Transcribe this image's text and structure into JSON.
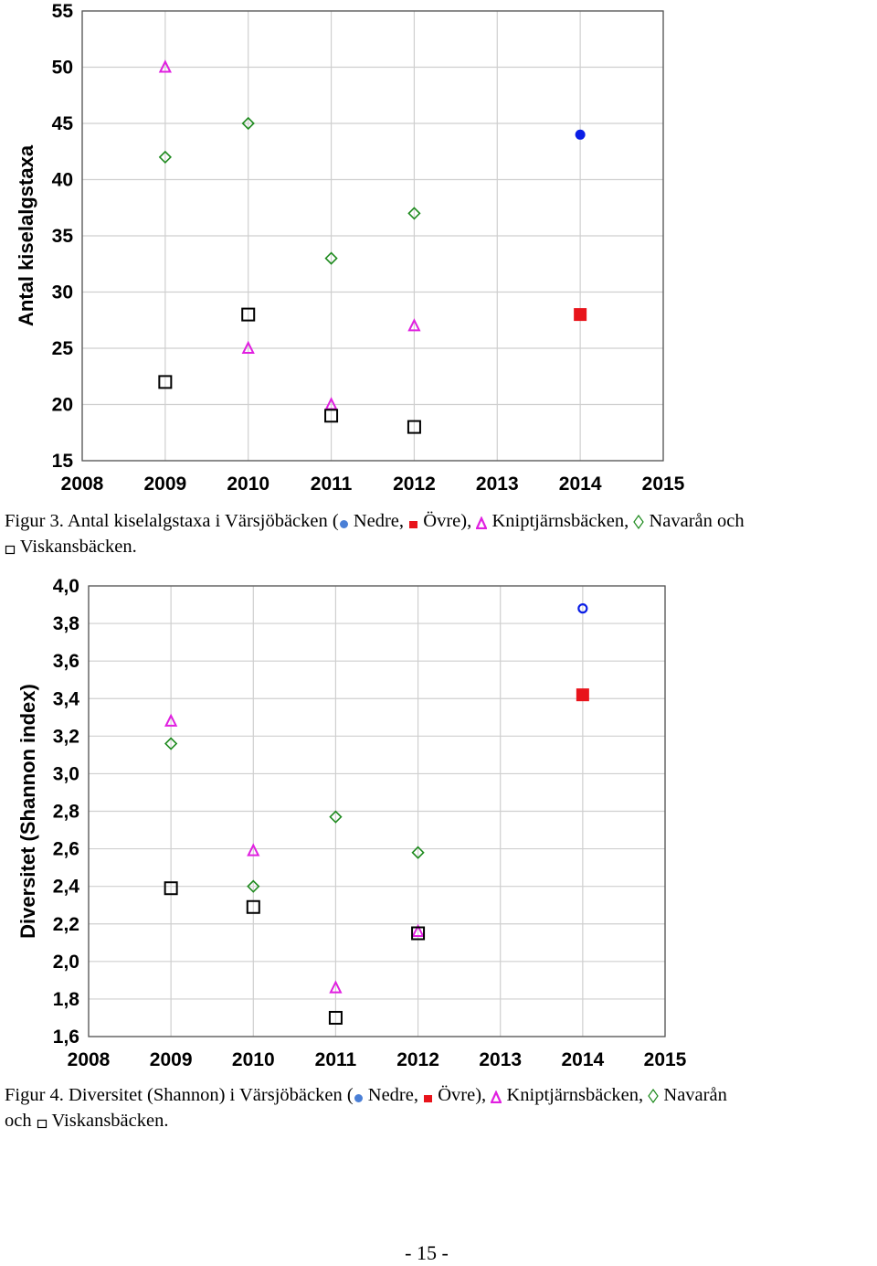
{
  "legend_symbols": {
    "nedre": {
      "icon": "filled-circle-icon",
      "color": "#4a7fd6"
    },
    "ovre": {
      "icon": "filled-square-icon",
      "color": "#e8141b"
    },
    "kniptjarn": {
      "icon": "delta-icon",
      "color": "#e020e0"
    },
    "navaran": {
      "icon": "diamond-outline-icon",
      "color": "#1d8a1d"
    },
    "viskans": {
      "icon": "square-outline-icon",
      "color": "#000000"
    }
  },
  "figure3": {
    "caption": {
      "prefix": "Figur 3. Antal kiselalgstaxa i Värsjöbäcken (",
      "nedre": " Nedre, ",
      "ovre": " Övre), ",
      "kniptjarn": " Kniptjärnsbäcken, ",
      "navaran": " Navarån och",
      "viskans": " Viskansbäcken."
    }
  },
  "figure4": {
    "caption": {
      "prefix": "Figur 4. Diversitet (Shannon) i Värsjöbäcken (",
      "nedre": " Nedre, ",
      "ovre": " Övre), ",
      "kniptjarn": " Kniptjärnsbäcken, ",
      "navaran": " Navarån",
      "och": "och ",
      "viskans": " Viskansbäcken."
    }
  },
  "page_number": "- 15 -",
  "chart_data": [
    {
      "type": "scatter",
      "title": "",
      "xlabel": "",
      "ylabel": "Antal kiselalgstaxa",
      "xlim": [
        2008,
        2015
      ],
      "ylim": [
        15,
        55
      ],
      "grid": true,
      "xticks": [
        "2008",
        "2009",
        "2010",
        "2011",
        "2012",
        "2013",
        "2014",
        "2015"
      ],
      "yticks": [
        "15",
        "20",
        "25",
        "30",
        "35",
        "40",
        "45",
        "50",
        "55"
      ],
      "series": [
        {
          "key": "nedre",
          "marker": "filled-circle",
          "color": "#0a1ee6",
          "points": [
            [
              2014,
              44
            ]
          ]
        },
        {
          "key": "ovre",
          "marker": "filled-square",
          "color": "#e8141b",
          "points": [
            [
              2014,
              28
            ]
          ]
        },
        {
          "key": "kniptjarn",
          "marker": "triangle",
          "color": "#e020e0",
          "points": [
            [
              2009,
              50
            ],
            [
              2010,
              25
            ],
            [
              2011,
              20
            ],
            [
              2012,
              27
            ]
          ]
        },
        {
          "key": "navaran",
          "marker": "diamond",
          "color": "#1d8a1d",
          "points": [
            [
              2009,
              42
            ],
            [
              2010,
              45
            ],
            [
              2011,
              33
            ],
            [
              2012,
              37
            ]
          ]
        },
        {
          "key": "viskans",
          "marker": "square",
          "color": "#000000",
          "points": [
            [
              2009,
              22
            ],
            [
              2010,
              28
            ],
            [
              2011,
              19
            ],
            [
              2012,
              18
            ]
          ]
        }
      ]
    },
    {
      "type": "scatter",
      "title": "",
      "xlabel": "",
      "ylabel": "Diversitet (Shannon index)",
      "xlim": [
        2008,
        2015
      ],
      "ylim": [
        1.6,
        4.0
      ],
      "grid": true,
      "xticks": [
        "2008",
        "2009",
        "2010",
        "2011",
        "2012",
        "2013",
        "2014",
        "2015"
      ],
      "yticks": [
        "1,6",
        "1,8",
        "2,0",
        "2,2",
        "2,4",
        "2,6",
        "2,8",
        "3,0",
        "3,2",
        "3,4",
        "3,6",
        "3,8",
        "4,0"
      ],
      "series": [
        {
          "key": "nedre",
          "marker": "circle",
          "color": "#0a1ee6",
          "points": [
            [
              2014,
              3.88
            ]
          ]
        },
        {
          "key": "ovre",
          "marker": "filled-square",
          "color": "#e8141b",
          "points": [
            [
              2014,
              3.42
            ]
          ]
        },
        {
          "key": "kniptjarn",
          "marker": "triangle",
          "color": "#e020e0",
          "points": [
            [
              2009,
              3.28
            ],
            [
              2010,
              2.59
            ],
            [
              2011,
              1.86
            ],
            [
              2012,
              2.16
            ]
          ]
        },
        {
          "key": "navaran",
          "marker": "diamond",
          "color": "#1d8a1d",
          "points": [
            [
              2009,
              3.16
            ],
            [
              2010,
              2.4
            ],
            [
              2011,
              2.77
            ],
            [
              2012,
              2.58
            ]
          ]
        },
        {
          "key": "viskans",
          "marker": "square",
          "color": "#000000",
          "points": [
            [
              2009,
              2.39
            ],
            [
              2010,
              2.29
            ],
            [
              2011,
              1.7
            ],
            [
              2012,
              2.15
            ]
          ]
        }
      ]
    }
  ]
}
